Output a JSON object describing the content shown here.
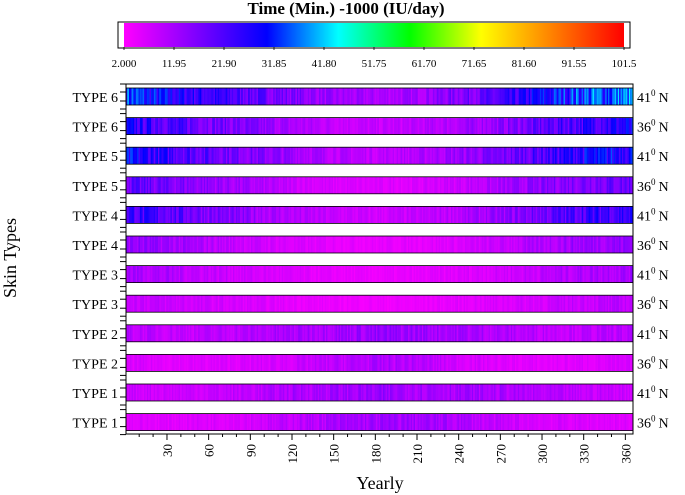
{
  "chart_data": {
    "type": "heatmap",
    "title": "Time (Min.) -1000 (IU/day)",
    "xlabel": "Yearly",
    "ylabel": "Skin Types",
    "x_range": [
      1,
      365
    ],
    "x_ticks": [
      30,
      60,
      90,
      120,
      150,
      180,
      210,
      240,
      270,
      300,
      330,
      360
    ],
    "colorbar": {
      "min": 2.0,
      "max": 101.5,
      "ticks": [
        "2.000",
        "11.95",
        "21.90",
        "31.85",
        "41.80",
        "51.75",
        "61.70",
        "71.65",
        "81.60",
        "91.55",
        "101.5"
      ],
      "colors": [
        "#ff00ff",
        "#8000ff",
        "#0000ff",
        "#00ffff",
        "#00ff00",
        "#ffff00",
        "#ff8000",
        "#ff0000"
      ]
    },
    "rows": [
      {
        "label": "TYPE 6",
        "latitude_label": "41",
        "lat_sup": "0",
        "lat_dir": "N",
        "profile": [
          [
            1,
            35
          ],
          [
            15,
            30
          ],
          [
            40,
            26
          ],
          [
            60,
            24
          ],
          [
            90,
            20
          ],
          [
            120,
            16
          ],
          [
            150,
            12
          ],
          [
            180,
            11
          ],
          [
            210,
            12
          ],
          [
            240,
            16
          ],
          [
            270,
            20
          ],
          [
            300,
            28
          ],
          [
            330,
            34
          ],
          [
            365,
            36
          ]
        ]
      },
      {
        "label": "TYPE 6",
        "latitude_label": "36",
        "lat_sup": "0",
        "lat_dir": "N",
        "profile": [
          [
            1,
            26
          ],
          [
            30,
            22
          ],
          [
            60,
            18
          ],
          [
            90,
            15
          ],
          [
            120,
            11
          ],
          [
            150,
            9
          ],
          [
            180,
            8
          ],
          [
            210,
            9
          ],
          [
            240,
            11
          ],
          [
            270,
            14
          ],
          [
            300,
            19
          ],
          [
            330,
            24
          ],
          [
            365,
            27
          ]
        ]
      },
      {
        "label": "TYPE 5",
        "latitude_label": "41",
        "lat_sup": "0",
        "lat_dir": "N",
        "profile": [
          [
            1,
            28
          ],
          [
            30,
            24
          ],
          [
            60,
            20
          ],
          [
            90,
            16
          ],
          [
            120,
            13
          ],
          [
            150,
            10
          ],
          [
            180,
            9
          ],
          [
            210,
            10
          ],
          [
            240,
            13
          ],
          [
            270,
            16
          ],
          [
            300,
            22
          ],
          [
            330,
            27
          ],
          [
            365,
            29
          ]
        ]
      },
      {
        "label": "TYPE 5",
        "latitude_label": "36",
        "lat_sup": "0",
        "lat_dir": "N",
        "profile": [
          [
            1,
            19
          ],
          [
            30,
            17
          ],
          [
            60,
            14
          ],
          [
            90,
            11
          ],
          [
            120,
            8
          ],
          [
            150,
            6
          ],
          [
            180,
            5.5
          ],
          [
            210,
            6
          ],
          [
            240,
            8
          ],
          [
            270,
            11
          ],
          [
            300,
            14
          ],
          [
            330,
            17
          ],
          [
            365,
            19
          ]
        ]
      },
      {
        "label": "TYPE 4",
        "latitude_label": "41",
        "lat_sup": "0",
        "lat_dir": "N",
        "profile": [
          [
            1,
            24
          ],
          [
            30,
            21
          ],
          [
            60,
            17
          ],
          [
            90,
            13
          ],
          [
            120,
            10
          ],
          [
            150,
            8
          ],
          [
            180,
            7
          ],
          [
            210,
            8
          ],
          [
            240,
            10
          ],
          [
            270,
            13
          ],
          [
            300,
            18
          ],
          [
            330,
            23
          ],
          [
            365,
            25
          ]
        ]
      },
      {
        "label": "TYPE 4",
        "latitude_label": "36",
        "lat_sup": "0",
        "lat_dir": "N",
        "profile": [
          [
            1,
            14
          ],
          [
            30,
            12.5
          ],
          [
            60,
            10
          ],
          [
            90,
            8
          ],
          [
            120,
            6
          ],
          [
            150,
            5
          ],
          [
            180,
            4.5
          ],
          [
            210,
            5
          ],
          [
            240,
            6
          ],
          [
            270,
            8
          ],
          [
            300,
            10.5
          ],
          [
            330,
            13
          ],
          [
            365,
            14
          ]
        ]
      },
      {
        "label": "TYPE 3",
        "latitude_label": "41",
        "lat_sup": "0",
        "lat_dir": "N",
        "profile": [
          [
            1,
            12
          ],
          [
            30,
            10.5
          ],
          [
            60,
            8.5
          ],
          [
            90,
            7
          ],
          [
            120,
            5.5
          ],
          [
            150,
            4.5
          ],
          [
            180,
            4
          ],
          [
            210,
            4.5
          ],
          [
            240,
            5.5
          ],
          [
            270,
            7
          ],
          [
            300,
            9
          ],
          [
            330,
            11
          ],
          [
            365,
            12
          ]
        ]
      },
      {
        "label": "TYPE 3",
        "latitude_label": "36",
        "lat_sup": "0",
        "lat_dir": "N",
        "profile": [
          [
            1,
            9
          ],
          [
            30,
            8
          ],
          [
            60,
            7
          ],
          [
            90,
            6
          ],
          [
            120,
            5
          ],
          [
            150,
            4
          ],
          [
            180,
            3.8
          ],
          [
            210,
            4
          ],
          [
            240,
            5
          ],
          [
            270,
            6
          ],
          [
            300,
            7
          ],
          [
            330,
            8.5
          ],
          [
            365,
            9
          ]
        ]
      },
      {
        "label": "TYPE 2",
        "latitude_label": "41",
        "lat_sup": "0",
        "lat_dir": "N",
        "profile": [
          [
            1,
            9.5
          ],
          [
            30,
            9
          ],
          [
            60,
            9
          ],
          [
            90,
            10
          ],
          [
            120,
            11
          ],
          [
            150,
            12.5
          ],
          [
            180,
            13
          ],
          [
            210,
            13
          ],
          [
            240,
            12
          ],
          [
            270,
            10.5
          ],
          [
            300,
            9.5
          ],
          [
            330,
            9
          ],
          [
            365,
            9.5
          ]
        ]
      },
      {
        "label": "TYPE 2",
        "latitude_label": "36",
        "lat_sup": "0",
        "lat_dir": "N",
        "profile": [
          [
            1,
            6
          ],
          [
            30,
            5.5
          ],
          [
            60,
            5.5
          ],
          [
            90,
            6
          ],
          [
            120,
            7
          ],
          [
            150,
            9
          ],
          [
            180,
            10.5
          ],
          [
            210,
            10
          ],
          [
            240,
            7
          ],
          [
            270,
            5.5
          ],
          [
            300,
            5
          ],
          [
            330,
            5.5
          ],
          [
            365,
            6
          ]
        ]
      },
      {
        "label": "TYPE 1",
        "latitude_label": "41",
        "lat_sup": "0",
        "lat_dir": "N",
        "profile": [
          [
            1,
            8
          ],
          [
            30,
            7.5
          ],
          [
            60,
            8
          ],
          [
            90,
            9
          ],
          [
            120,
            11
          ],
          [
            150,
            12
          ],
          [
            180,
            12.5
          ],
          [
            210,
            12.5
          ],
          [
            240,
            12
          ],
          [
            270,
            11
          ],
          [
            300,
            9.5
          ],
          [
            330,
            8.5
          ],
          [
            365,
            8
          ]
        ]
      },
      {
        "label": "TYPE 1",
        "latitude_label": "36",
        "lat_sup": "0",
        "lat_dir": "N",
        "profile": [
          [
            1,
            5.5
          ],
          [
            30,
            5.5
          ],
          [
            60,
            6
          ],
          [
            90,
            7
          ],
          [
            120,
            9
          ],
          [
            150,
            11
          ],
          [
            180,
            12
          ],
          [
            210,
            12
          ],
          [
            240,
            11
          ],
          [
            270,
            8
          ],
          [
            300,
            6.5
          ],
          [
            330,
            6
          ],
          [
            365,
            5.5
          ]
        ]
      }
    ]
  }
}
